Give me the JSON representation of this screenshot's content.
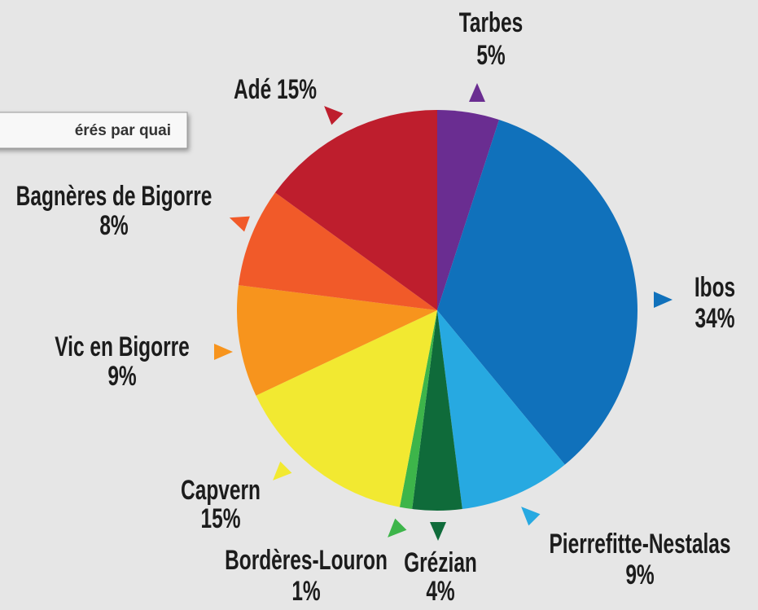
{
  "chart_data": {
    "type": "pie",
    "title": "érés par quai",
    "categories": [
      "Tarbes",
      "Ibos",
      "Pierrefitte-Nestalas",
      "Grézian",
      "Bordères-Louron",
      "Capvern",
      "Vic en Bigorre",
      "Bagnères de Bigorre",
      "Adé"
    ],
    "values": [
      5,
      34,
      9,
      4,
      1,
      15,
      9,
      8,
      15
    ],
    "value_labels": [
      "5%",
      "34%",
      "9%",
      "4%",
      "1%",
      "15%",
      "9%",
      "8%",
      "15%"
    ],
    "colors": [
      "#6a2d91",
      "#1071bb",
      "#27a9e1",
      "#0f6b3a",
      "#3db54a",
      "#f2e931",
      "#f7941d",
      "#f15a29",
      "#be1e2d"
    ]
  }
}
